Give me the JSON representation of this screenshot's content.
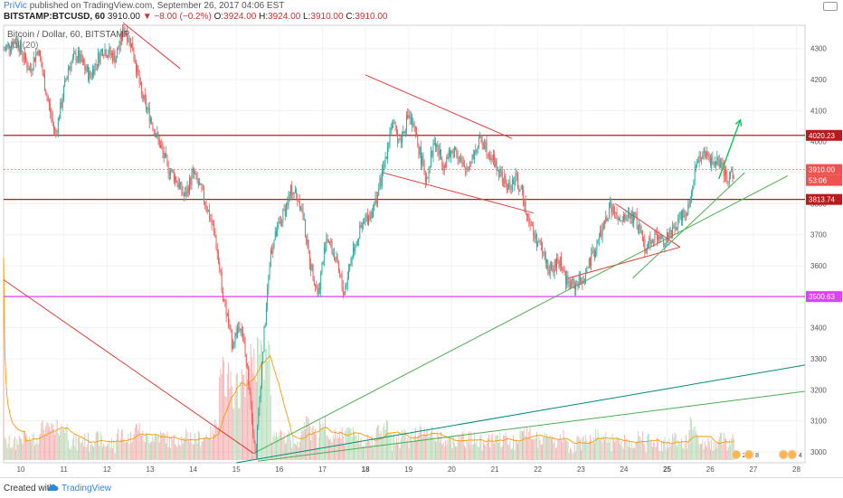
{
  "header": {
    "user": "PriVic",
    "published": " published on TradingView.com, September 26, 2017 04:06 EST",
    "symbol": "BITSTAMP:BTCUSD, 60",
    "last": "3910.00",
    "change": "▼ −8.00 (−0.2%)",
    "o_label": "O:",
    "o": "3924.00",
    "h_label": "H:",
    "h": "3924.00",
    "l_label": "L:",
    "l": "3910.00",
    "c_label": "C:",
    "c": "3910.00"
  },
  "legend": {
    "series": "Bitcoin / Dollar, 60, BITSTAMP",
    "volume": "Vol (20)"
  },
  "footer": {
    "created": "Created with",
    "brand": "TradingView"
  },
  "colors": {
    "up": "#26a69a",
    "down": "#ef5350",
    "resistance": "#b71c1c",
    "magenta": "#e040fb",
    "trend_green": "#4caf50",
    "trend_teal": "#00897b",
    "pattern_red": "#e53935",
    "volume_up": "#a5d6a7",
    "volume_down": "#ef9a9a",
    "volume_ma": "#ff9800"
  },
  "chart_data": {
    "type": "candlestick",
    "title": "Bitcoin / Dollar, 60, BITSTAMP",
    "y_ticks": [
      3000,
      3100,
      3200,
      3300,
      3400,
      3500,
      3600,
      3700,
      3800,
      3900,
      4000,
      4100,
      4200,
      4300
    ],
    "x_ticks": [
      "10",
      "11",
      "12",
      "13",
      "14",
      "15",
      "16",
      "17",
      "18",
      "19",
      "20",
      "21",
      "22",
      "23",
      "24",
      "25",
      "26",
      "27",
      "28"
    ],
    "ylim": [
      2965,
      4375
    ],
    "xlim": [
      9.6,
      28.2
    ],
    "price_path": [
      [
        9.6,
        4295
      ],
      [
        9.9,
        4330
      ],
      [
        10.2,
        4230
      ],
      [
        10.4,
        4300
      ],
      [
        10.6,
        4150
      ],
      [
        10.8,
        4020
      ],
      [
        11.1,
        4240
      ],
      [
        11.3,
        4280
      ],
      [
        11.6,
        4210
      ],
      [
        11.9,
        4300
      ],
      [
        12.2,
        4270
      ],
      [
        12.4,
        4370
      ],
      [
        12.6,
        4300
      ],
      [
        12.8,
        4150
      ],
      [
        13.0,
        4080
      ],
      [
        13.2,
        4000
      ],
      [
        13.4,
        3920
      ],
      [
        13.6,
        3880
      ],
      [
        13.8,
        3820
      ],
      [
        14.0,
        3900
      ],
      [
        14.3,
        3800
      ],
      [
        14.5,
        3700
      ],
      [
        14.7,
        3500
      ],
      [
        14.9,
        3350
      ],
      [
        15.1,
        3420
      ],
      [
        15.3,
        3220
      ],
      [
        15.45,
        2985
      ],
      [
        15.6,
        3300
      ],
      [
        15.8,
        3650
      ],
      [
        16.0,
        3730
      ],
      [
        16.3,
        3850
      ],
      [
        16.5,
        3800
      ],
      [
        16.7,
        3620
      ],
      [
        16.9,
        3510
      ],
      [
        17.1,
        3700
      ],
      [
        17.3,
        3620
      ],
      [
        17.5,
        3510
      ],
      [
        17.7,
        3650
      ],
      [
        17.9,
        3720
      ],
      [
        18.2,
        3790
      ],
      [
        18.4,
        3900
      ],
      [
        18.6,
        4060
      ],
      [
        18.8,
        4000
      ],
      [
        19.0,
        4090
      ],
      [
        19.2,
        4000
      ],
      [
        19.4,
        3880
      ],
      [
        19.6,
        4000
      ],
      [
        19.8,
        3930
      ],
      [
        20.1,
        3980
      ],
      [
        20.3,
        3900
      ],
      [
        20.5,
        3960
      ],
      [
        20.7,
        4010
      ],
      [
        20.9,
        3960
      ],
      [
        21.1,
        3900
      ],
      [
        21.3,
        3850
      ],
      [
        21.5,
        3880
      ],
      [
        21.7,
        3800
      ],
      [
        21.9,
        3700
      ],
      [
        22.1,
        3650
      ],
      [
        22.3,
        3580
      ],
      [
        22.5,
        3620
      ],
      [
        22.7,
        3540
      ],
      [
        22.9,
        3540
      ],
      [
        23.1,
        3570
      ],
      [
        23.3,
        3640
      ],
      [
        23.5,
        3720
      ],
      [
        23.7,
        3790
      ],
      [
        23.9,
        3730
      ],
      [
        24.1,
        3770
      ],
      [
        24.3,
        3740
      ],
      [
        24.5,
        3660
      ],
      [
        24.7,
        3700
      ],
      [
        24.9,
        3680
      ],
      [
        25.1,
        3700
      ],
      [
        25.3,
        3760
      ],
      [
        25.5,
        3790
      ],
      [
        25.65,
        3920
      ],
      [
        25.8,
        3960
      ],
      [
        26.0,
        3940
      ],
      [
        26.2,
        3930
      ],
      [
        26.4,
        3870
      ],
      [
        26.55,
        3910
      ]
    ],
    "horizontal_levels": [
      {
        "value": 4020.23,
        "label": "4020.23",
        "color": "#b71c1c"
      },
      {
        "value": 3813.74,
        "label": "3813.74",
        "color": "#b71c1c"
      },
      {
        "value": 3500.63,
        "label": "3500.63",
        "color": "#e040fb"
      }
    ],
    "current_price": {
      "value": 3910.0,
      "label": "3910.00",
      "countdown": "53:06"
    },
    "trendlines": [
      {
        "color": "#e53935",
        "from": [
          12.4,
          4380
        ],
        "to": [
          13.7,
          4235
        ]
      },
      {
        "color": "#e53935",
        "from": [
          9.6,
          3555
        ],
        "to": [
          15.4,
          2995
        ]
      },
      {
        "color": "#e53935",
        "from": [
          18.0,
          4215
        ],
        "to": [
          21.4,
          4010
        ]
      },
      {
        "color": "#e53935",
        "from": [
          18.4,
          3900
        ],
        "to": [
          21.9,
          3770
        ]
      },
      {
        "color": "#e53935",
        "from": [
          22.7,
          3560
        ],
        "to": [
          25.3,
          3660
        ]
      },
      {
        "color": "#e53935",
        "from": [
          23.8,
          3800
        ],
        "to": [
          25.3,
          3660
        ]
      },
      {
        "color": "#4caf50",
        "from": [
          15.4,
          2995
        ],
        "to": [
          27.8,
          3890
        ]
      },
      {
        "color": "#4caf50",
        "from": [
          24.2,
          3560
        ],
        "to": [
          26.8,
          3900
        ]
      },
      {
        "color": "#4caf50",
        "from": [
          15.5,
          2970
        ],
        "to": [
          28.2,
          3195
        ]
      },
      {
        "color": "#00897b",
        "from": [
          15.0,
          2965
        ],
        "to": [
          28.2,
          3280
        ]
      }
    ],
    "projection_arrow": {
      "color": "#00c853",
      "from": [
        26.2,
        3880
      ],
      "to": [
        26.7,
        4070
      ]
    },
    "volume_series": "Vol (20)",
    "event_markers": [
      {
        "x": 26.6,
        "label": "2"
      },
      {
        "x": 26.9,
        "label": "8"
      },
      {
        "x": 27.7,
        "label": "5"
      },
      {
        "x": 27.9,
        "label": "4"
      }
    ]
  }
}
